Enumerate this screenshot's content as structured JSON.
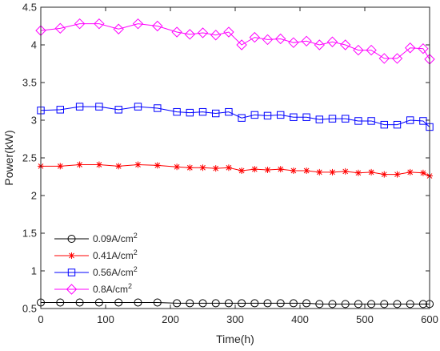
{
  "chart_data": {
    "type": "line",
    "title": "",
    "xlabel": "Time(h)",
    "ylabel": "Power(kW)",
    "xlim": [
      0,
      600
    ],
    "ylim": [
      0.5,
      4.5
    ],
    "xticks": [
      0,
      100,
      200,
      300,
      400,
      500,
      600
    ],
    "yticks": [
      0.5,
      1,
      1.5,
      2,
      2.5,
      3,
      3.5,
      4,
      4.5
    ],
    "xtick_labels": [
      "0",
      "100",
      "200",
      "300",
      "400",
      "500",
      "600"
    ],
    "ytick_labels": [
      "0.5",
      "1",
      "1.5",
      "2",
      "2.5",
      "3",
      "3.5",
      "4",
      "4.5"
    ],
    "grid": false,
    "legend_position": "bottom-left",
    "series": [
      {
        "name": "0.09A/cm",
        "name_sup": "2",
        "color": "#000000",
        "marker": "circle",
        "x": [
          0,
          30,
          60,
          90,
          120,
          150,
          180,
          210,
          230,
          250,
          270,
          290,
          310,
          330,
          350,
          370,
          390,
          410,
          430,
          450,
          470,
          490,
          510,
          530,
          550,
          570,
          590,
          600
        ],
        "values": [
          0.58,
          0.58,
          0.58,
          0.58,
          0.58,
          0.58,
          0.58,
          0.57,
          0.57,
          0.57,
          0.57,
          0.57,
          0.57,
          0.57,
          0.57,
          0.57,
          0.57,
          0.57,
          0.56,
          0.56,
          0.56,
          0.56,
          0.56,
          0.56,
          0.56,
          0.56,
          0.56,
          0.56
        ]
      },
      {
        "name": "0.41A/cm",
        "name_sup": "2",
        "color": "#ff0000",
        "marker": "asterisk",
        "x": [
          0,
          30,
          60,
          90,
          120,
          150,
          180,
          210,
          230,
          250,
          270,
          290,
          310,
          330,
          350,
          370,
          390,
          410,
          430,
          450,
          470,
          490,
          510,
          530,
          550,
          570,
          590,
          600
        ],
        "values": [
          2.39,
          2.39,
          2.41,
          2.41,
          2.39,
          2.41,
          2.4,
          2.38,
          2.37,
          2.37,
          2.36,
          2.37,
          2.33,
          2.35,
          2.34,
          2.35,
          2.33,
          2.33,
          2.31,
          2.31,
          2.32,
          2.3,
          2.31,
          2.28,
          2.28,
          2.31,
          2.3,
          2.26
        ]
      },
      {
        "name": "0.56A/cm",
        "name_sup": "2",
        "color": "#0000ff",
        "marker": "square",
        "x": [
          0,
          30,
          60,
          90,
          120,
          150,
          180,
          210,
          230,
          250,
          270,
          290,
          310,
          330,
          350,
          370,
          390,
          410,
          430,
          450,
          470,
          490,
          510,
          530,
          550,
          570,
          590,
          600
        ],
        "values": [
          3.13,
          3.14,
          3.18,
          3.18,
          3.14,
          3.18,
          3.16,
          3.11,
          3.1,
          3.11,
          3.09,
          3.11,
          3.03,
          3.07,
          3.06,
          3.07,
          3.04,
          3.04,
          3.01,
          3.02,
          3.02,
          2.99,
          2.99,
          2.94,
          2.94,
          3.0,
          2.99,
          2.91
        ]
      },
      {
        "name": "0.8A/cm",
        "name_sup": "2",
        "color": "#ff00ff",
        "marker": "diamond",
        "x": [
          0,
          30,
          60,
          90,
          120,
          150,
          180,
          210,
          230,
          250,
          270,
          290,
          310,
          330,
          350,
          370,
          390,
          410,
          430,
          450,
          470,
          490,
          510,
          530,
          550,
          570,
          590,
          600
        ],
        "values": [
          4.19,
          4.22,
          4.28,
          4.28,
          4.21,
          4.28,
          4.25,
          4.17,
          4.14,
          4.16,
          4.13,
          4.17,
          4.0,
          4.1,
          4.07,
          4.08,
          4.03,
          4.05,
          4.0,
          4.04,
          4.0,
          3.93,
          3.93,
          3.82,
          3.82,
          3.96,
          3.95,
          3.81
        ]
      }
    ]
  }
}
